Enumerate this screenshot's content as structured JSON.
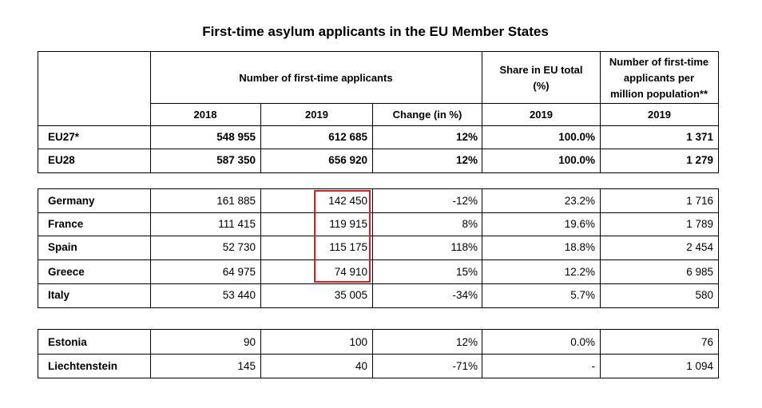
{
  "title": "First-time asylum applicants in the EU Member States",
  "headers": {
    "group_applicants": "Number of first-time applicants",
    "share_line1": "Share in EU total",
    "share_line2": "(%)",
    "permillion_line1": "Number of first-time",
    "permillion_line2": "applicants per",
    "permillion_line3": "million population**",
    "col_2018": "2018",
    "col_2019": "2019",
    "col_change": "Change (in %)",
    "col_share_year": "2019",
    "col_permillion_year": "2019"
  },
  "totals": [
    {
      "name": "EU27*",
      "y2018": "548 955",
      "y2019": "612 685",
      "change": "12%",
      "share": "100.0%",
      "per_million": "1 371"
    },
    {
      "name": "EU28",
      "y2018": "587 350",
      "y2019": "656 920",
      "change": "12%",
      "share": "100.0%",
      "per_million": "1 279"
    }
  ],
  "top_countries": [
    {
      "name": "Germany",
      "y2018": "161 885",
      "y2019": "142 450",
      "change": "-12%",
      "share": "23.2%",
      "per_million": "1 716"
    },
    {
      "name": "France",
      "y2018": "111 415",
      "y2019": "119 915",
      "change": "8%",
      "share": "19.6%",
      "per_million": "1 789"
    },
    {
      "name": "Spain",
      "y2018": "52 730",
      "y2019": "115 175",
      "change": "118%",
      "share": "18.8%",
      "per_million": "2 454"
    },
    {
      "name": "Greece",
      "y2018": "64 975",
      "y2019": "74 910",
      "change": "15%",
      "share": "12.2%",
      "per_million": "6 985"
    },
    {
      "name": "Italy",
      "y2018": "53 440",
      "y2019": "35 005",
      "change": "-34%",
      "share": "5.7%",
      "per_million": "580"
    }
  ],
  "other_countries": [
    {
      "name": "Estonia",
      "y2018": "90",
      "y2019": "100",
      "change": "12%",
      "share": "0.0%",
      "per_million": "76"
    },
    {
      "name": "Liechtenstein",
      "y2018": "145",
      "y2019": "40",
      "change": "-71%",
      "share": "-",
      "per_million": "1 094"
    }
  ],
  "highlight_color": "#e01b24"
}
